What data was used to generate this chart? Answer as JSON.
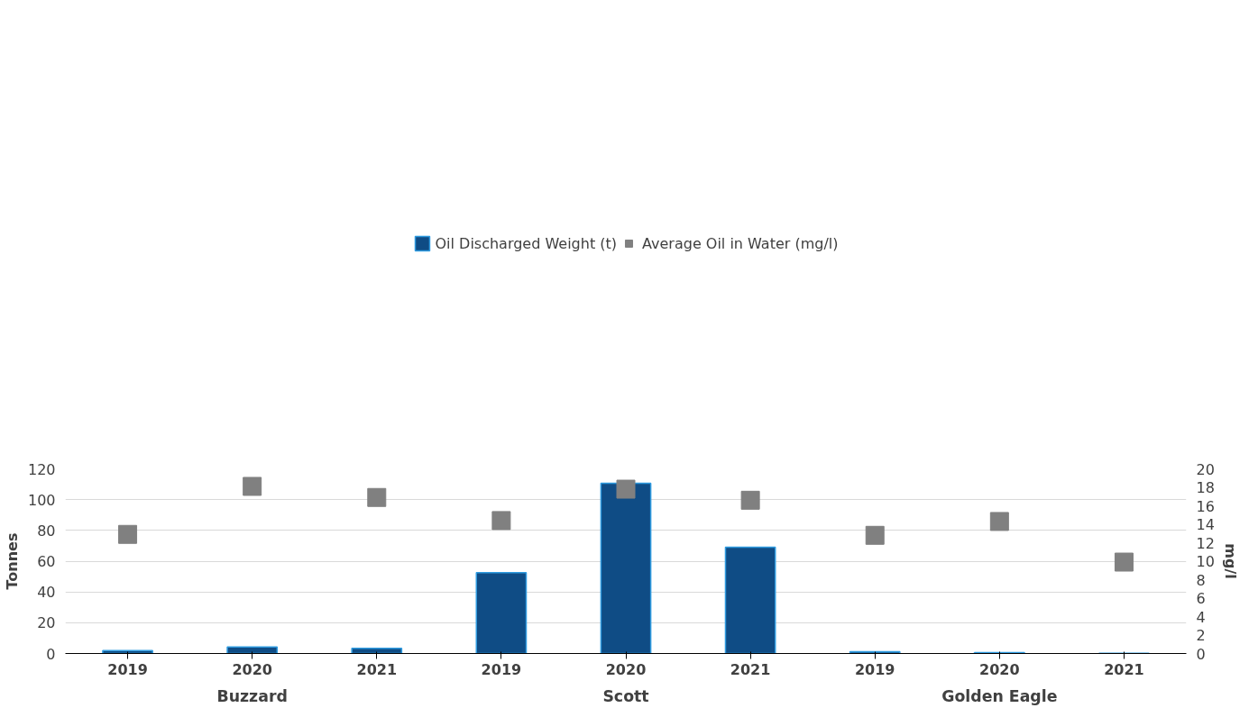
{
  "chart_data": {
    "type": "bar",
    "ylabel": "Tonnes",
    "y2label": "mg/l",
    "categories": [
      "2019",
      "2020",
      "2021",
      "2019",
      "2020",
      "2021",
      "2019",
      "2020",
      "2021"
    ],
    "annotations": [
      "Buzzard",
      "Scott",
      "Golden Eagle"
    ],
    "series": [
      {
        "name": "Oil Discharged Weight (t)",
        "color": "#0f4c85",
        "values": [
          1.9,
          4.2,
          3.3,
          52.6,
          110.6,
          69.1,
          1.1,
          0.6,
          0.2
        ]
      },
      {
        "name": "Average Oil in Water (mg/l)",
        "type": "scatter",
        "axis": "y2",
        "color": "#808080",
        "values": [
          12.9,
          18.1,
          16.9,
          14.4,
          17.8,
          16.6,
          12.8,
          14.3,
          9.9
        ]
      }
    ],
    "ylim": [
      0,
      120
    ],
    "yticks": [
      0,
      20,
      40,
      60,
      80,
      100,
      120
    ],
    "y2lim": [
      0,
      20
    ],
    "y2ticks": [
      0,
      2,
      4,
      6,
      8,
      10,
      12,
      14,
      16,
      18,
      20
    ],
    "grid": "y",
    "legend": "top",
    "marker": "square"
  }
}
